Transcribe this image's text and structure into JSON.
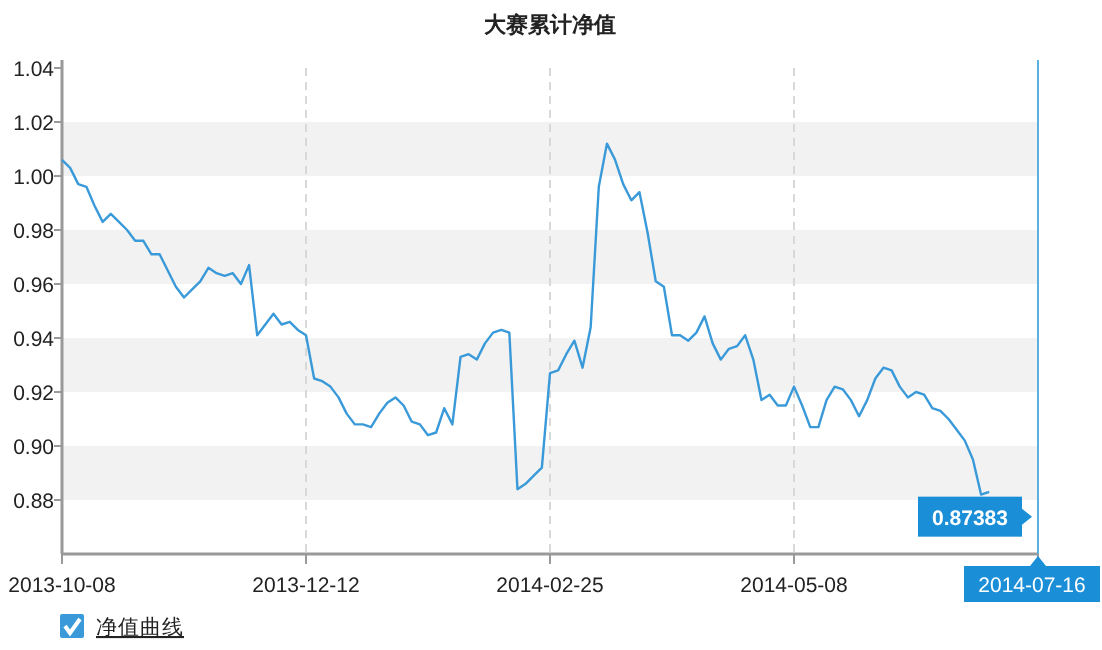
{
  "chart_data": {
    "type": "line",
    "title": "大赛累计净值",
    "categories": [
      "2013-10-08",
      null,
      null,
      null,
      null,
      null,
      null,
      null,
      null,
      null,
      null,
      null,
      null,
      null,
      null,
      null,
      null,
      null,
      null,
      null,
      null,
      null,
      null,
      null,
      null,
      null,
      null,
      null,
      null,
      null,
      "2013-12-12",
      null,
      null,
      null,
      null,
      null,
      null,
      null,
      null,
      null,
      null,
      null,
      null,
      null,
      null,
      null,
      null,
      null,
      null,
      null,
      null,
      null,
      null,
      null,
      null,
      null,
      null,
      null,
      null,
      null,
      "2014-02-25",
      null,
      null,
      null,
      null,
      null,
      null,
      null,
      null,
      null,
      null,
      null,
      null,
      null,
      null,
      null,
      null,
      null,
      null,
      null,
      null,
      null,
      null,
      null,
      null,
      null,
      null,
      null,
      null,
      null,
      "2014-05-08",
      null,
      null,
      null,
      null,
      null,
      null,
      null,
      null,
      null,
      null,
      null,
      null,
      null,
      null,
      null,
      null,
      null,
      null,
      null,
      null,
      null,
      null,
      null,
      null,
      null,
      null,
      null,
      null,
      null,
      "2014-07-16"
    ],
    "series": [
      {
        "name": "净值曲线",
        "color": "#3a9ad9",
        "values": [
          1.006,
          1.003,
          0.997,
          0.996,
          0.989,
          0.983,
          0.986,
          0.983,
          0.98,
          0.976,
          0.976,
          0.971,
          0.971,
          0.965,
          0.959,
          0.955,
          0.958,
          0.961,
          0.966,
          0.964,
          0.963,
          0.964,
          0.96,
          0.967,
          0.941,
          0.945,
          0.949,
          0.945,
          0.946,
          0.943,
          0.941,
          0.925,
          0.924,
          0.922,
          0.918,
          0.912,
          0.908,
          0.908,
          0.907,
          0.912,
          0.916,
          0.918,
          0.915,
          0.909,
          0.908,
          0.904,
          0.905,
          0.914,
          0.908,
          0.933,
          0.934,
          0.932,
          0.938,
          0.942,
          0.943,
          0.942,
          0.884,
          0.886,
          0.889,
          0.892,
          0.927,
          0.928,
          0.934,
          0.939,
          0.929,
          0.944,
          0.996,
          1.012,
          1.006,
          0.997,
          0.991,
          0.994,
          0.979,
          0.961,
          0.959,
          0.941,
          0.941,
          0.939,
          0.942,
          0.948,
          0.938,
          0.932,
          0.936,
          0.937,
          0.941,
          0.932,
          0.917,
          0.919,
          0.915,
          0.915,
          0.922,
          0.915,
          0.907,
          0.907,
          0.917,
          0.922,
          0.921,
          0.917,
          0.911,
          0.917,
          0.925,
          0.929,
          0.928,
          0.922,
          0.918,
          0.92,
          0.919,
          0.914,
          0.913,
          0.91,
          0.906,
          0.902,
          0.895,
          0.882,
          0.883,
          null,
          null,
          null,
          null,
          null,
          null
        ]
      }
    ],
    "ylim": [
      0.86,
      1.04
    ],
    "yticks": [
      0.88,
      {
        "value": 0.9,
        "label": "0.90"
      },
      0.92,
      0.94,
      0.96,
      0.98,
      {
        "value": 1,
        "label": "1.00"
      },
      1.02,
      1.04
    ],
    "grid": "x",
    "legend": "bottom left",
    "bands": [
      {
        "axis": "y",
        "from": 0.88,
        "to": 0.9,
        "color": "#f2f2f2"
      },
      {
        "axis": "y",
        "from": 0.92,
        "to": 0.94,
        "color": "#f2f2f2"
      },
      {
        "axis": "y",
        "from": 0.96,
        "to": 0.98,
        "color": "#f2f2f2"
      },
      {
        "axis": "y",
        "from": 1.0,
        "to": 1.02,
        "color": "#f2f2f2"
      }
    ],
    "ref_lines": [
      {
        "axis": "x",
        "value": "2014-07-16",
        "color": "#5bb0e0"
      }
    ],
    "annotations": [
      {
        "text": "0.87383",
        "x": "2014-07-16",
        "y": 0.87383
      }
    ]
  }
}
